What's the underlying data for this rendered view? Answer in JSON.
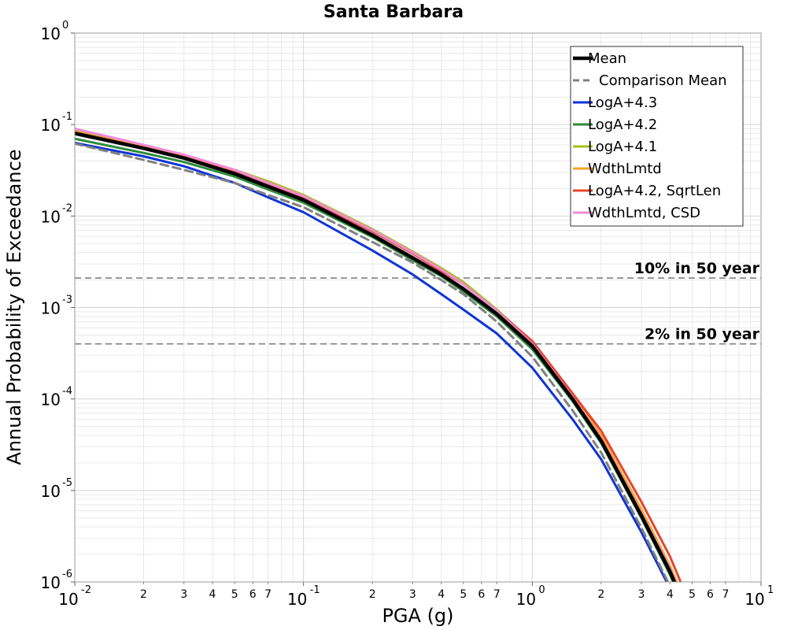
{
  "chart_data": {
    "type": "line",
    "title": "Santa Barbara",
    "xlabel": "PGA (g)",
    "ylabel": "Annual Probability of Exceedance",
    "x_scale": "log",
    "y_scale": "log",
    "xlim": [
      0.01,
      10
    ],
    "ylim": [
      1e-06,
      1
    ],
    "x_major_ticks": [
      {
        "base": "10",
        "exp": "-2",
        "value": 0.01
      },
      {
        "base": "10",
        "exp": "-1",
        "value": 0.1
      },
      {
        "base": "10",
        "exp": "0",
        "value": 1
      },
      {
        "base": "10",
        "exp": "1",
        "value": 10
      }
    ],
    "x_minor_tick_labels": [
      "2",
      "3",
      "4",
      "5",
      "6",
      "7"
    ],
    "y_major_ticks": [
      {
        "base": "10",
        "exp": "0",
        "value": 1
      },
      {
        "base": "10",
        "exp": "-1",
        "value": 0.1
      },
      {
        "base": "10",
        "exp": "-2",
        "value": 0.01
      },
      {
        "base": "10",
        "exp": "-3",
        "value": 0.001
      },
      {
        "base": "10",
        "exp": "-4",
        "value": 0.0001
      },
      {
        "base": "10",
        "exp": "-5",
        "value": 1e-05
      },
      {
        "base": "10",
        "exp": "-6",
        "value": 1e-06
      }
    ],
    "grid": true,
    "legend_position": "top-right",
    "reference_lines": [
      {
        "label": "10% in 50 year",
        "y": 0.0021,
        "color": "#808080",
        "style": "dashed"
      },
      {
        "label": "2% in 50 year",
        "y": 0.0004,
        "color": "#808080",
        "style": "dashed"
      }
    ],
    "series": [
      {
        "name": "Mean",
        "color": "#000000",
        "style": "solid",
        "width": 4.5,
        "x": [
          0.01,
          0.02,
          0.03,
          0.05,
          0.07,
          0.1,
          0.2,
          0.3,
          0.4,
          0.5,
          0.7,
          1.0,
          1.5,
          2.0,
          3.0,
          4.0,
          5.0
        ],
        "y": [
          0.08,
          0.055,
          0.043,
          0.029,
          0.021,
          0.015,
          0.0062,
          0.0035,
          0.0023,
          0.0016,
          0.00085,
          0.00038,
          0.0001,
          3.5e-05,
          5.3e-06,
          1.3e-06,
          3.5e-07
        ]
      },
      {
        "name": "Comparison Mean",
        "color": "#808080",
        "style": "dashed",
        "width": 3,
        "x": [
          0.01,
          0.02,
          0.03,
          0.05,
          0.07,
          0.1,
          0.2,
          0.3,
          0.4,
          0.5,
          0.7,
          1.0,
          1.5,
          2.0,
          3.0,
          4.0,
          5.0
        ],
        "y": [
          0.062,
          0.041,
          0.032,
          0.023,
          0.017,
          0.0125,
          0.0052,
          0.0031,
          0.002,
          0.0014,
          0.0007,
          0.00029,
          7.5e-05,
          2.6e-05,
          3.9e-06,
          9e-07,
          2.5e-07
        ]
      },
      {
        "name": "LogA+4.3",
        "color": "#1033d6",
        "style": "solid",
        "width": 3,
        "x": [
          0.01,
          0.02,
          0.03,
          0.05,
          0.07,
          0.1,
          0.2,
          0.3,
          0.4,
          0.5,
          0.7,
          1.0,
          1.5,
          2.0,
          3.0,
          4.0,
          5.0
        ],
        "y": [
          0.063,
          0.045,
          0.035,
          0.023,
          0.016,
          0.011,
          0.0042,
          0.0023,
          0.0014,
          0.00095,
          0.00052,
          0.00022,
          6e-05,
          2.2e-05,
          3.5e-06,
          8.5e-07,
          2.2e-07
        ]
      },
      {
        "name": "LogA+4.2",
        "color": "#2e8b3a",
        "style": "solid",
        "width": 3,
        "x": [
          0.01,
          0.02,
          0.03,
          0.05,
          0.07,
          0.1,
          0.2,
          0.3,
          0.4,
          0.5,
          0.7,
          1.0,
          1.5,
          2.0,
          3.0,
          4.0,
          5.0
        ],
        "y": [
          0.07,
          0.049,
          0.039,
          0.027,
          0.0195,
          0.014,
          0.0059,
          0.0033,
          0.0022,
          0.0015,
          0.0008,
          0.00035,
          9.5e-05,
          3.3e-05,
          5e-06,
          1.2e-06,
          3.3e-07
        ]
      },
      {
        "name": "LogA+4.1",
        "color": "#a8c020",
        "style": "solid",
        "width": 3,
        "x": [
          0.01,
          0.02,
          0.03,
          0.05,
          0.07,
          0.1,
          0.2,
          0.3,
          0.4,
          0.5,
          0.7,
          1.0,
          1.5,
          2.0,
          3.0,
          4.0,
          5.0
        ],
        "y": [
          0.085,
          0.058,
          0.046,
          0.032,
          0.024,
          0.017,
          0.0072,
          0.0041,
          0.0027,
          0.0019,
          0.00095,
          0.00042,
          0.00011,
          3.8e-05,
          5.8e-06,
          1.4e-06,
          3.8e-07
        ]
      },
      {
        "name": "WdthLmtd",
        "color": "#f5a623",
        "style": "solid",
        "width": 3,
        "x": [
          0.01,
          0.02,
          0.03,
          0.05,
          0.07,
          0.1,
          0.2,
          0.3,
          0.4,
          0.5,
          0.7,
          1.0,
          1.5,
          2.0,
          3.0,
          4.0,
          5.0
        ],
        "y": [
          0.083,
          0.057,
          0.045,
          0.031,
          0.023,
          0.0165,
          0.007,
          0.004,
          0.0026,
          0.0018,
          0.00092,
          0.00042,
          0.00011,
          4e-05,
          6.2e-06,
          1.5e-06,
          4e-07
        ]
      },
      {
        "name": "LogA+4.2, SqrtLen",
        "color": "#e8452c",
        "style": "solid",
        "width": 3,
        "x": [
          0.01,
          0.02,
          0.03,
          0.05,
          0.07,
          0.1,
          0.2,
          0.3,
          0.4,
          0.5,
          0.7,
          1.0,
          1.5,
          2.0,
          3.0,
          4.0,
          5.0
        ],
        "y": [
          0.082,
          0.056,
          0.044,
          0.03,
          0.022,
          0.016,
          0.0068,
          0.0039,
          0.0025,
          0.0018,
          0.00092,
          0.00043,
          0.000115,
          4.5e-05,
          7.5e-06,
          1.9e-06,
          5e-07
        ]
      },
      {
        "name": "WdthLmtd, CSD",
        "color": "#f08ad8",
        "style": "solid",
        "width": 3,
        "x": [
          0.01,
          0.02,
          0.03,
          0.05,
          0.07,
          0.1,
          0.2,
          0.3,
          0.4,
          0.5,
          0.7,
          1.0,
          1.5,
          2.0,
          3.0,
          4.0,
          5.0
        ],
        "y": [
          0.09,
          0.06,
          0.047,
          0.032,
          0.023,
          0.0165,
          0.007,
          0.004,
          0.0026,
          0.0018,
          0.00092,
          0.0004,
          0.000105,
          3.7e-05,
          5.6e-06,
          1.4e-06,
          3.7e-07
        ]
      }
    ]
  }
}
